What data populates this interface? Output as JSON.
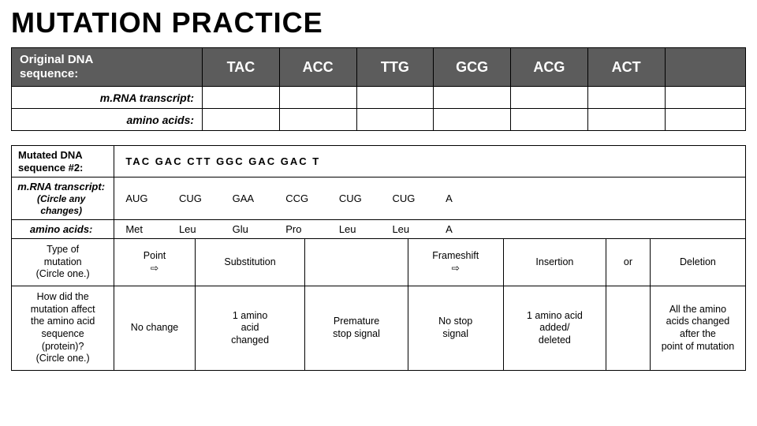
{
  "title": "MUTATION PRACTICE",
  "table1": {
    "header_label_l1": "Original DNA",
    "header_label_l2": "sequence:",
    "codons": [
      "TAC",
      "ACC",
      "TTG",
      "GCG",
      "ACG",
      "ACT"
    ],
    "row2_label": "m.RNA transcript:",
    "row3_label": "amino acids:",
    "colors": {
      "header_bg": "#5c5c5c",
      "header_text": "#ffffff",
      "border": "#000000"
    }
  },
  "table2": {
    "header_l1": "Mutated DNA",
    "header_l2": "sequence #2:",
    "dna": "TAC  GAC  CTT  GGC  GAC  GAC  T",
    "mrna_label": "m.RNA transcript:",
    "mrna_note": "(Circle any changes)",
    "mrna_vals": [
      "AUG",
      "CUG",
      "GAA",
      "CCG",
      "CUG",
      "CUG",
      "A"
    ],
    "aa_label": "amino acids:",
    "aa_vals": [
      "Met",
      "Leu",
      "Glu",
      "Pro",
      "Leu",
      "Leu",
      "A"
    ]
  },
  "table3": {
    "row1": {
      "c0": "Type of\nmutation\n(Circle one.)",
      "c1": "Point\n⇨",
      "c2": "Substitution",
      "c3": "",
      "c4": "Frameshift\n⇨",
      "c5": "Insertion",
      "c6": "or",
      "c7": "Deletion"
    },
    "row2": {
      "c0": "How did the\nmutation affect\nthe amino acid\nsequence\n(protein)?\n(Circle one.)",
      "c1": "No change",
      "c2": "1 amino\nacid\nchanged",
      "c3": "Premature\nstop signal",
      "c4": "No stop\nsignal",
      "c5": "1 amino acid\nadded/\ndeleted",
      "c6": "",
      "c7": "All the amino\nacids changed\nafter the\npoint of mutation"
    }
  }
}
